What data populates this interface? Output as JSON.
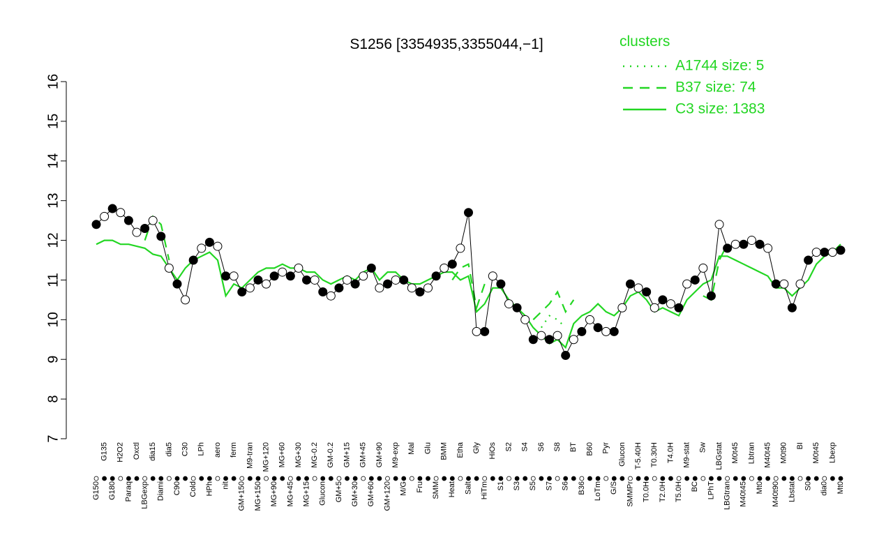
{
  "chart_data": {
    "type": "line",
    "title": "S1256 [3354935,3355044,−1]",
    "legend_title": "clusters",
    "legend": "top-right",
    "categories": [
      "G150",
      "G135",
      "G180",
      "H2O2",
      "Paraq",
      "Oxctl",
      "LBGexp",
      "dia15",
      "Diami",
      "dia5",
      "C90",
      "C30",
      "Cold",
      "LPh",
      "HPh",
      "aero",
      "nit",
      "ferm",
      "GM+150",
      "M9-tran",
      "MG+150",
      "MG+120",
      "MG+90",
      "MG+60",
      "MG+45",
      "MG+30",
      "MG+15",
      "MG-0.2",
      "Glucon",
      "GM-0.2",
      "GM+5",
      "GM+15",
      "GM+30",
      "GM+45",
      "GM+60",
      "GM+90",
      "GM+120",
      "M9-exp",
      "M/G",
      "Mal",
      "Fru",
      "Glu",
      "SMM",
      "BMM",
      "Heat",
      "Etha",
      "Salt",
      "Gly",
      "HiTm",
      "HiOs",
      "S1",
      "S2",
      "S3",
      "S4",
      "S5",
      "S6",
      "S7",
      "S8",
      "S6",
      "BT",
      "B36",
      "B60",
      "LoTm",
      "Pyr",
      "G/S",
      "Glucon",
      "SMMPr",
      "T-5.40H",
      "T0.0H",
      "T0.30H",
      "T2.0H",
      "T4.0H",
      "T5.0H",
      "M9-stat",
      "BC",
      "Sw",
      "LPhT",
      "LBGstat",
      "LBGtran",
      "M0t45",
      "M40t45",
      "Lbtran",
      "Mt0",
      "M40t45",
      "M40t90",
      "M0t90",
      "Lbstat",
      "BI",
      "S0",
      "M0t45",
      "dia0",
      "Lbexp",
      "Mt0"
    ],
    "values": [
      12.4,
      12.6,
      12.8,
      12.7,
      12.5,
      12.2,
      12.3,
      12.5,
      12.1,
      11.3,
      10.9,
      10.5,
      11.5,
      11.8,
      11.95,
      11.85,
      11.1,
      11.1,
      10.7,
      10.8,
      11.0,
      10.9,
      11.1,
      11.2,
      11.1,
      11.3,
      11.0,
      11.0,
      10.7,
      10.6,
      10.8,
      11.0,
      10.9,
      11.1,
      11.3,
      10.8,
      10.9,
      11.0,
      11.0,
      10.8,
      10.7,
      10.8,
      11.1,
      11.3,
      11.4,
      11.8,
      12.7,
      9.7,
      9.7,
      11.1,
      10.9,
      10.4,
      10.3,
      10.0,
      9.5,
      9.6,
      9.5,
      9.6,
      9.1,
      9.5,
      9.7,
      10.0,
      9.8,
      9.7,
      9.7,
      10.3,
      10.9,
      10.8,
      10.7,
      10.3,
      10.5,
      10.4,
      10.3,
      10.9,
      11.0,
      11.3,
      10.6,
      12.4,
      11.8,
      11.9,
      11.9,
      12.0,
      11.9,
      11.8,
      10.9,
      10.9,
      10.3,
      10.9,
      11.5,
      11.7,
      11.7,
      11.7,
      11.75
    ],
    "series": [
      {
        "name": "A1744 size: 5",
        "color": "#22d622",
        "dash": "dotted",
        "values": [
          null,
          null,
          null,
          null,
          null,
          null,
          null,
          null,
          null,
          null,
          null,
          null,
          null,
          null,
          null,
          null,
          null,
          null,
          null,
          null,
          null,
          null,
          null,
          null,
          null,
          null,
          null,
          null,
          null,
          null,
          null,
          null,
          null,
          null,
          null,
          null,
          null,
          null,
          null,
          null,
          null,
          null,
          null,
          null,
          null,
          null,
          null,
          null,
          null,
          null,
          null,
          null,
          null,
          null,
          null,
          9.8,
          10.1,
          10.0,
          9.8,
          null,
          null,
          null,
          null,
          null,
          null,
          null,
          null,
          null,
          null,
          null,
          null,
          null,
          null,
          null,
          null,
          null,
          null,
          null,
          null,
          null,
          null,
          null,
          null,
          null,
          null,
          null,
          null,
          null,
          null,
          null,
          null,
          null,
          null
        ]
      },
      {
        "name": "B37 size: 74",
        "color": "#22d622",
        "dash": "dashed",
        "values": [
          null,
          null,
          null,
          null,
          null,
          null,
          12.0,
          12.6,
          12.4,
          11.5,
          null,
          null,
          null,
          null,
          null,
          null,
          null,
          null,
          null,
          null,
          null,
          null,
          null,
          null,
          null,
          null,
          null,
          null,
          null,
          null,
          null,
          null,
          null,
          null,
          null,
          null,
          null,
          null,
          null,
          null,
          null,
          null,
          null,
          null,
          11.0,
          11.3,
          11.4,
          10.3,
          10.9,
          null,
          null,
          null,
          null,
          null,
          10.0,
          10.2,
          10.4,
          10.7,
          10.2,
          10.5,
          null,
          null,
          null,
          null,
          null,
          null,
          null,
          null,
          null,
          null,
          null,
          null,
          null,
          null,
          null,
          10.6,
          10.5,
          11.5,
          11.9,
          null,
          null,
          null,
          null,
          null,
          null,
          null,
          null,
          null,
          null,
          null,
          null,
          null,
          null
        ]
      },
      {
        "name": "C3 size: 1383",
        "color": "#22d622",
        "dash": "solid",
        "values": [
          11.9,
          12.0,
          12.0,
          11.9,
          11.9,
          11.85,
          11.8,
          11.65,
          11.6,
          11.3,
          11.0,
          11.3,
          11.5,
          11.6,
          11.7,
          11.5,
          10.6,
          10.9,
          10.8,
          11.0,
          11.2,
          11.3,
          11.3,
          11.4,
          11.3,
          11.3,
          11.2,
          11.2,
          11.0,
          10.9,
          11.0,
          11.1,
          11.0,
          11.2,
          11.3,
          11.0,
          11.2,
          11.2,
          11.0,
          10.9,
          10.9,
          11.0,
          11.1,
          11.2,
          11.2,
          11.0,
          11.1,
          10.2,
          10.4,
          10.8,
          10.8,
          10.5,
          10.3,
          10.1,
          9.8,
          9.6,
          9.4,
          9.5,
          9.3,
          9.9,
          10.1,
          10.2,
          10.4,
          10.2,
          10.1,
          10.3,
          10.6,
          10.7,
          10.5,
          10.2,
          10.3,
          10.2,
          10.1,
          10.5,
          10.7,
          10.9,
          11.0,
          11.6,
          11.6,
          11.5,
          11.4,
          11.3,
          11.2,
          11.1,
          10.8,
          10.8,
          10.6,
          10.8,
          11.0,
          11.4,
          11.6,
          11.7,
          11.9
        ]
      }
    ],
    "ylim": [
      7,
      16
    ],
    "yticks": [
      7,
      8,
      9,
      10,
      11,
      12,
      13,
      14,
      15,
      16
    ],
    "grid": false
  }
}
